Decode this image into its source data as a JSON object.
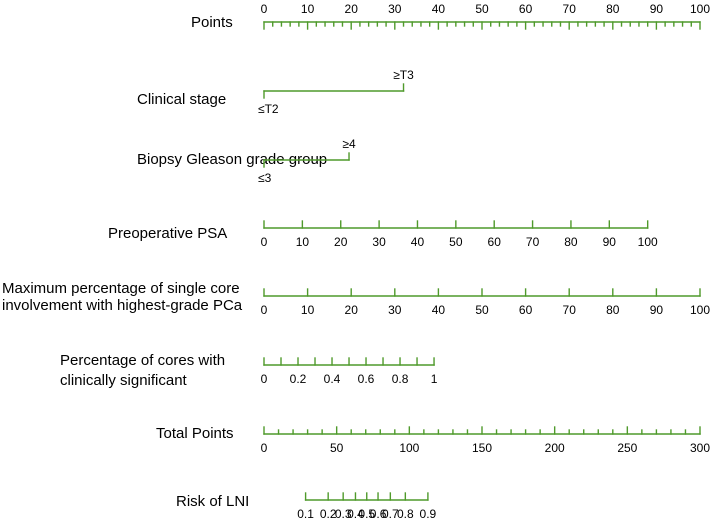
{
  "chart_data": {
    "type": "nomogram",
    "title": "",
    "line_color": "#4f9a2b",
    "text_color": "#000000",
    "rows": [
      {
        "id": "points",
        "label": [
          "Points"
        ],
        "scale": {
          "min": 0,
          "max": 100
        },
        "major_ticks": [
          0,
          10,
          20,
          30,
          40,
          50,
          60,
          70,
          80,
          90,
          100
        ],
        "minor_step": 2,
        "tick_labels": [
          "0",
          "10",
          "20",
          "30",
          "40",
          "50",
          "60",
          "70",
          "80",
          "90",
          "100"
        ],
        "labels_position": "above"
      },
      {
        "id": "clinical-stage",
        "label": [
          "Clinical stage"
        ],
        "type": "categorical",
        "points_range": [
          0,
          32
        ],
        "categories": [
          {
            "label": "≤T2",
            "points": 0,
            "position": "below"
          },
          {
            "label": "≥T3",
            "points": 32,
            "position": "above"
          }
        ]
      },
      {
        "id": "gleason",
        "label": [
          "Biopsy Gleason grade group"
        ],
        "type": "categorical",
        "points_range": [
          0,
          19.5
        ],
        "categories": [
          {
            "label": "≤3",
            "points": 0,
            "position": "below"
          },
          {
            "label": "≥4",
            "points": 19.5,
            "position": "above"
          }
        ]
      },
      {
        "id": "psa",
        "label": [
          "Preoperative PSA"
        ],
        "scale": {
          "min": 0,
          "max": 100
        },
        "points_range": [
          0,
          88
        ],
        "major_ticks": [
          0,
          10,
          20,
          30,
          40,
          50,
          60,
          70,
          80,
          90,
          100
        ],
        "tick_labels": [
          "0",
          "10",
          "20",
          "30",
          "40",
          "50",
          "60",
          "70",
          "80",
          "90",
          "100"
        ],
        "labels_position": "below"
      },
      {
        "id": "max-core",
        "label": [
          "Maximum percentage of single core",
          "involvement with highest-grade PCa"
        ],
        "scale": {
          "min": 0,
          "max": 100
        },
        "points_range": [
          0,
          100
        ],
        "major_ticks": [
          0,
          10,
          20,
          30,
          40,
          50,
          60,
          70,
          80,
          90,
          100
        ],
        "tick_labels": [
          "0",
          "10",
          "20",
          "30",
          "40",
          "50",
          "60",
          "70",
          "80",
          "90",
          "100"
        ],
        "labels_position": "below"
      },
      {
        "id": "pct-cores",
        "label": [
          "Percentage of cores with",
          "clinically significant"
        ],
        "scale": {
          "min": 0,
          "max": 1
        },
        "points_range": [
          0,
          39
        ],
        "major_ticks": [
          0,
          0.1,
          0.2,
          0.3,
          0.4,
          0.5,
          0.6,
          0.7,
          0.8,
          0.9,
          1
        ],
        "tick_labels": [
          "0",
          "0.2",
          "0.4",
          "0.6",
          "0.8",
          "1"
        ],
        "tick_label_values": [
          0,
          0.2,
          0.4,
          0.6,
          0.8,
          1
        ],
        "labels_position": "below"
      },
      {
        "id": "total-points",
        "label": [
          "Total Points"
        ],
        "scale": {
          "min": 0,
          "max": 300
        },
        "points_range": [
          0,
          100
        ],
        "major_ticks": [
          0,
          50,
          100,
          150,
          200,
          250,
          300
        ],
        "minor_step": 10,
        "tick_labels": [
          "0",
          "50",
          "100",
          "150",
          "200",
          "250",
          "300"
        ],
        "labels_position": "below"
      },
      {
        "id": "risk",
        "label": [
          "Risk of LNI"
        ],
        "scale_type": "risk",
        "points_range": [
          28.3,
          86.5
        ],
        "major_ticks": [
          0.1,
          0.2,
          0.3,
          0.4,
          0.5,
          0.6,
          0.7,
          0.8,
          0.9
        ],
        "tick_labels": [
          "0.1",
          "0.2",
          "0.3",
          "0.4",
          "0.5",
          "0.6",
          "0.7",
          "0.8",
          "0.9"
        ],
        "labels_position": "below"
      }
    ]
  }
}
